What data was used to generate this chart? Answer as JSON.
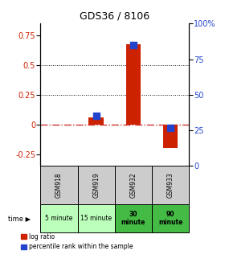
{
  "title": "GDS36 / 8106",
  "samples": [
    "GSM918",
    "GSM919",
    "GSM932",
    "GSM933"
  ],
  "time_labels": [
    "5 minute",
    "15 minute",
    "30\nminute",
    "90\nminute"
  ],
  "time_bg_colors": [
    "#bbffbb",
    "#bbffbb",
    "#44bb44",
    "#44bb44"
  ],
  "log_ratio": [
    0.0,
    0.06,
    0.68,
    -0.2
  ],
  "percentile_rank_pct": [
    null,
    35.0,
    85.0,
    27.0
  ],
  "ylim_left": [
    -0.35,
    0.85
  ],
  "ylim_right": [
    0,
    100
  ],
  "yticks_left": [
    -0.25,
    0.0,
    0.25,
    0.5,
    0.75
  ],
  "yticks_right": [
    0,
    25,
    50,
    75,
    100
  ],
  "bar_color": "#cc2200",
  "dot_color": "#2244cc",
  "zero_line_color": "#cc3333",
  "grid_color": "#111111",
  "bg_plot": "#ffffff",
  "sample_bg": "#cccccc",
  "bar_width": 0.4,
  "dot_size": 30
}
